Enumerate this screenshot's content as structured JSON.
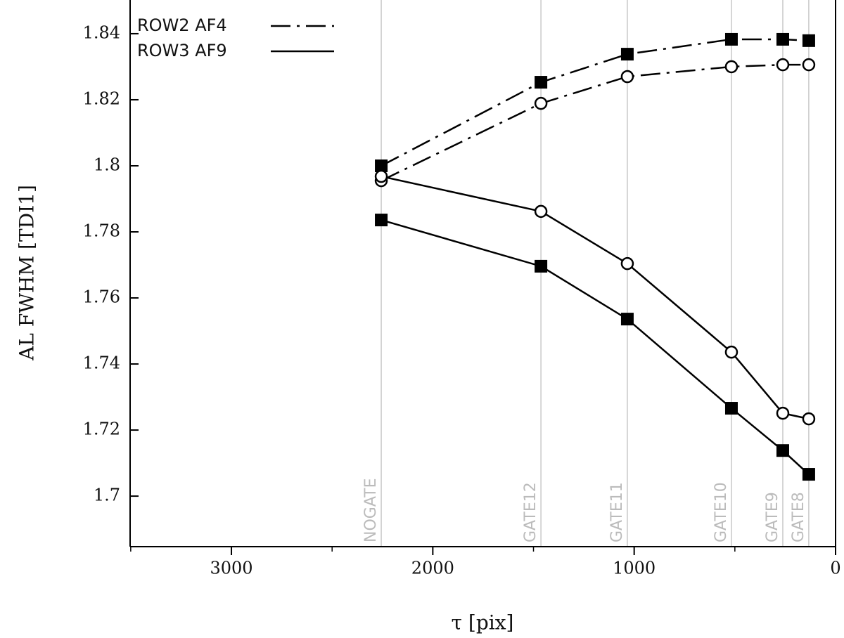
{
  "chart_data": {
    "type": "line",
    "x_label": "τ [pix]",
    "y_label": "AL FWHM [TDI1]",
    "xlim": [
      3503,
      0
    ],
    "ylim": [
      1.6847,
      1.8502
    ],
    "xticks": [
      3000,
      2000,
      1000,
      0
    ],
    "xminorticks": [
      3500,
      2500,
      1500,
      500
    ],
    "yticks": [
      1.7,
      1.72,
      1.74,
      1.76,
      1.78,
      1.8,
      1.82,
      1.84
    ],
    "gates": {
      "labels": [
        "NOGATE",
        "GATE12",
        "GATE11",
        "GATE10",
        "GATE9",
        "GATE8"
      ],
      "x": [
        2256,
        1463,
        1034,
        517,
        262,
        133
      ]
    },
    "legend": "upper left",
    "series": [
      {
        "name": "ROW2 AF4",
        "dash": "dashdot",
        "color": "#000000",
        "markers": [
          {
            "marker": "square",
            "values": [
              1.8,
              1.8253,
              1.8338,
              1.8383,
              1.8383,
              1.8379
            ]
          },
          {
            "marker": "circle",
            "values": [
              1.7955,
              1.8189,
              1.827,
              1.83,
              1.8306,
              1.8306
            ]
          }
        ]
      },
      {
        "name": "ROW3 AF9",
        "dash": "solid",
        "color": "#000000",
        "markers": [
          {
            "marker": "circle",
            "values": [
              1.7968,
              1.7862,
              1.7704,
              1.7436,
              1.7251,
              1.7234
            ]
          },
          {
            "marker": "square",
            "values": [
              1.7836,
              1.7696,
              1.7536,
              1.7266,
              1.7138,
              1.7066
            ]
          }
        ]
      }
    ]
  }
}
